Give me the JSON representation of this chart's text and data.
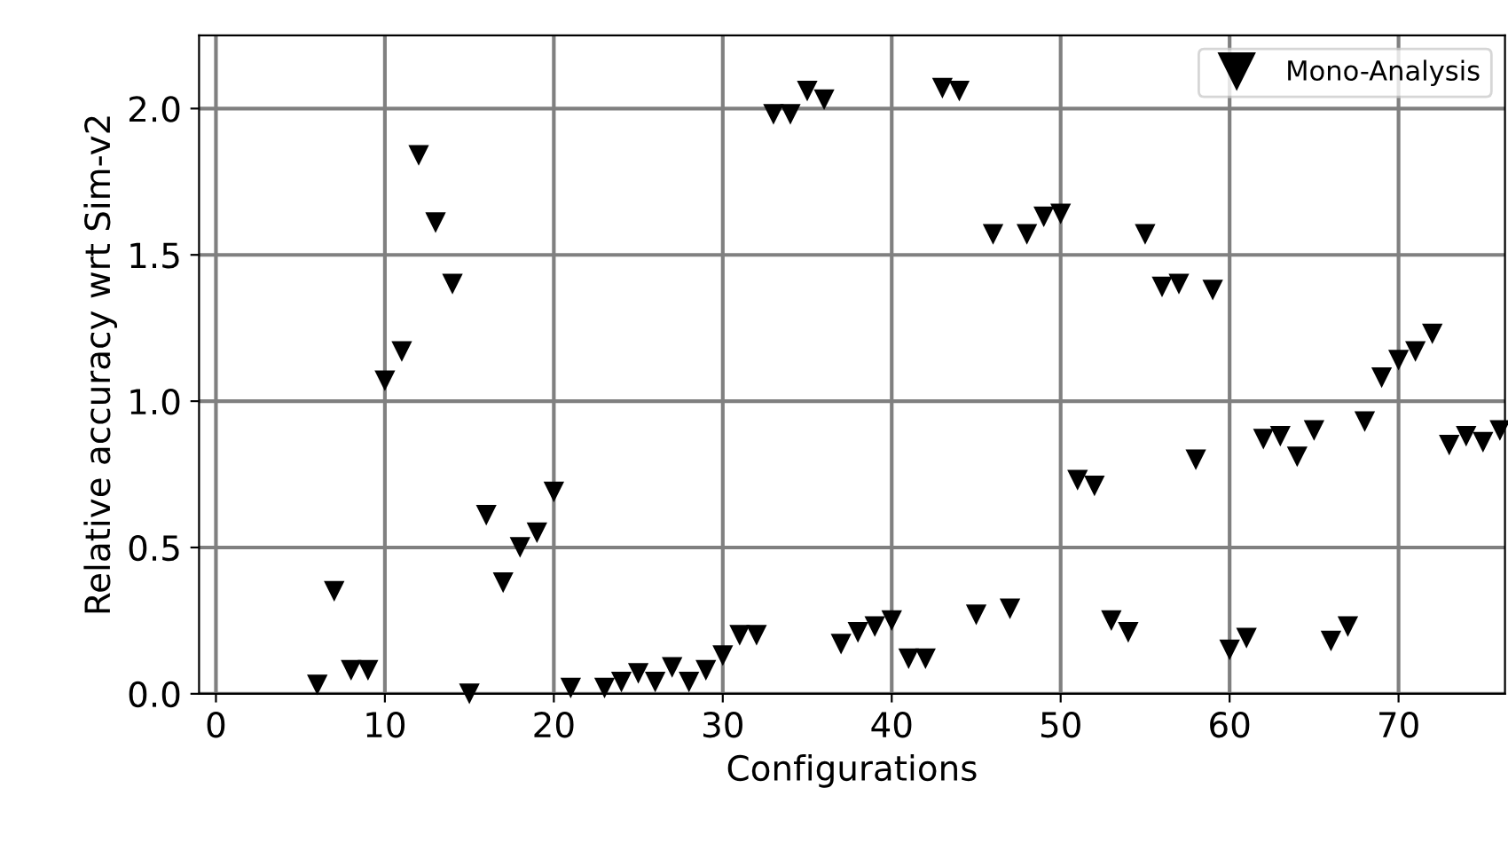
{
  "chart_data": {
    "type": "scatter",
    "xlabel": "Configurations",
    "ylabel": "Relative accuracy wrt Sim-v2",
    "series": [
      {
        "name": "Mono-Analysis",
        "color": "#000000",
        "x": [
          6,
          7,
          8,
          9,
          10,
          11,
          12,
          13,
          14,
          15,
          16,
          17,
          18,
          19,
          20,
          21,
          23,
          24,
          25,
          26,
          27,
          28,
          29,
          30,
          31,
          32,
          33,
          34,
          35,
          36,
          37,
          38,
          39,
          40,
          41,
          42,
          43,
          44,
          45,
          46,
          47,
          48,
          49,
          50,
          51,
          52,
          53,
          54,
          55,
          56,
          57,
          58,
          59,
          60,
          61,
          62,
          63,
          64,
          65,
          66,
          67,
          68,
          69,
          70,
          71,
          72,
          73,
          74,
          75,
          76
        ],
        "values": [
          0.03,
          0.35,
          0.08,
          0.08,
          1.07,
          1.17,
          1.84,
          1.61,
          1.4,
          0.0,
          0.61,
          0.38,
          0.5,
          0.55,
          0.69,
          0.02,
          0.02,
          0.04,
          0.07,
          0.04,
          0.09,
          0.04,
          0.08,
          0.13,
          0.2,
          0.2,
          1.98,
          1.98,
          2.06,
          2.03,
          0.17,
          0.21,
          0.23,
          0.25,
          0.12,
          0.12,
          2.07,
          2.06,
          0.27,
          1.57,
          0.29,
          1.57,
          1.63,
          1.64,
          0.73,
          0.71,
          0.25,
          0.21,
          1.57,
          1.39,
          1.4,
          0.8,
          1.38,
          0.15,
          0.19,
          0.87,
          0.88,
          0.81,
          0.9,
          0.18,
          0.23,
          0.93,
          1.08,
          1.14,
          1.17,
          1.23,
          0.85,
          0.88,
          0.86,
          0.9
        ]
      }
    ],
    "xlim": [
      -1,
      76.3
    ],
    "xticks": [
      0,
      10,
      20,
      30,
      40,
      50,
      60,
      70
    ],
    "ylim": [
      0,
      2.25
    ],
    "yticks": [
      {
        "value": 0,
        "label": "0.0"
      },
      {
        "value": 0.5,
        "label": "0.5"
      },
      {
        "value": 1,
        "label": "1.0"
      },
      {
        "value": 1.5,
        "label": "1.5"
      },
      {
        "value": 2,
        "label": "2.0"
      }
    ],
    "grid": true,
    "legend": "top right",
    "marker": "triangle"
  }
}
